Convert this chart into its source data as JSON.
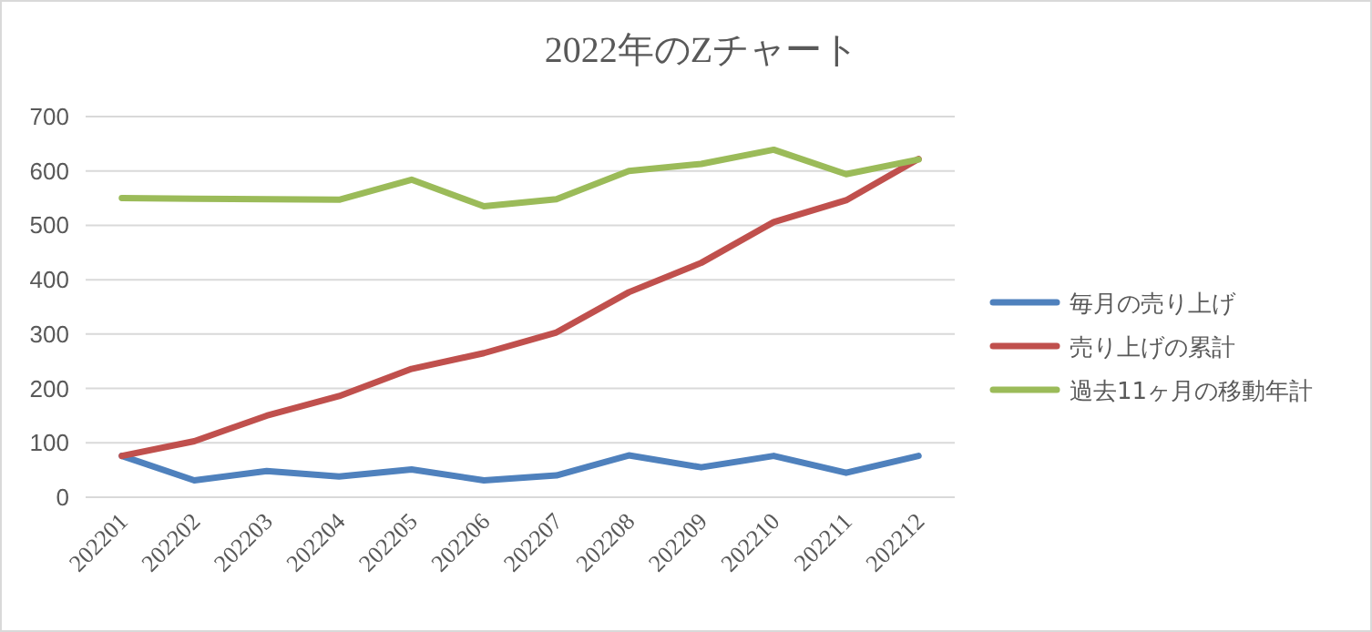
{
  "chart_data": {
    "type": "line",
    "title": "2022年のZチャート",
    "categories": [
      "202201",
      "202202",
      "202203",
      "202204",
      "202205",
      "202206",
      "202207",
      "202208",
      "202209",
      "202210",
      "202211",
      "202212"
    ],
    "series": [
      {
        "name": "毎月の売り上げ",
        "color": "#4f81bd",
        "values": [
          76,
          31,
          48,
          38,
          51,
          31,
          40,
          77,
          55,
          76,
          45,
          76
        ]
      },
      {
        "name": "売り上げの累計",
        "color": "#c0504d",
        "values": [
          76,
          103,
          150,
          186,
          236,
          265,
          303,
          377,
          431,
          506,
          546,
          622
        ]
      },
      {
        "name": "過去11ヶ月の移動年計",
        "color": "#9bbb59",
        "values": [
          550,
          549,
          548,
          547,
          584,
          535,
          548,
          600,
          613,
          639,
          594,
          621
        ]
      }
    ],
    "ylim": [
      0,
      700
    ],
    "yticks": [
      0,
      100,
      200,
      300,
      400,
      500,
      600,
      700
    ],
    "grid": "y",
    "legend": "right",
    "marker": "none",
    "line_style": "solid"
  }
}
